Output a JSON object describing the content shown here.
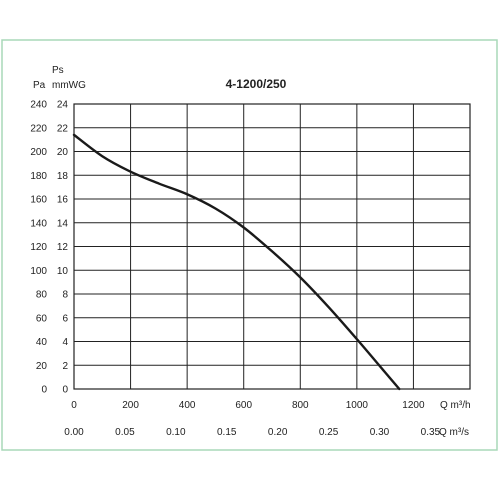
{
  "chart_data": {
    "type": "line",
    "title": "4-1200/250",
    "y_label_main": "Ps",
    "y_label_pa": "Pa",
    "y_label_mmwg": "mmWG",
    "x_label_m3h": "Q m³/h",
    "x_label_m3s": "Q m³/s",
    "pa_ticks": [
      "0",
      "20",
      "40",
      "60",
      "80",
      "100",
      "120",
      "140",
      "160",
      "180",
      "200",
      "220",
      "240"
    ],
    "mmwg_ticks": [
      "0",
      "2",
      "4",
      "6",
      "8",
      "10",
      "12",
      "14",
      "16",
      "18",
      "20",
      "22",
      "24"
    ],
    "m3h_ticks": [
      "0",
      "200",
      "400",
      "600",
      "800",
      "1000",
      "1200"
    ],
    "m3s_ticks": [
      "0.00",
      "0.05",
      "0.10",
      "0.15",
      "0.20",
      "0.25",
      "0.30",
      "0.35"
    ],
    "xlim": [
      0,
      1400
    ],
    "ylim": [
      0,
      24
    ],
    "grid": true,
    "series": [
      {
        "color": "#1a1a1a",
        "x": [
          0,
          100,
          200,
          300,
          400,
          500,
          600,
          700,
          800,
          900,
          1000,
          1100,
          1150
        ],
        "y": [
          21.4,
          19.6,
          18.3,
          17.3,
          16.4,
          15.2,
          13.6,
          11.6,
          9.4,
          6.9,
          4.2,
          1.4,
          0
        ]
      }
    ]
  },
  "frame": {
    "border_color": "#a8d8b9"
  }
}
